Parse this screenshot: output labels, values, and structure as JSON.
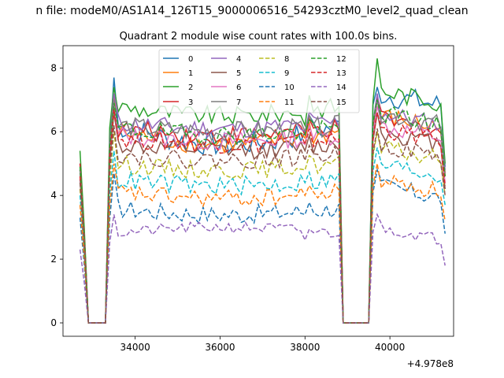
{
  "figure": {
    "suptitle": "n file: modeM0/AS1A14_126T15_9000006516_54293cztM0_level2_quad_clean",
    "offset_label": "+4.978e8"
  },
  "chart_data": {
    "type": "line",
    "title": "Quadrant 2 module wise count rates with 100.0s bins.",
    "xlabel": "",
    "ylabel": "",
    "x_offset": 497800000,
    "xlim": [
      32300,
      41500
    ],
    "ylim": [
      -0.42,
      8.7
    ],
    "x_ticks": [
      34000,
      36000,
      38000,
      40000
    ],
    "x_tick_labels": [
      "34000",
      "36000",
      "38000",
      "40000"
    ],
    "y_ticks": [
      0,
      2,
      4,
      6,
      8
    ],
    "y_tick_labels": [
      "0",
      "2",
      "4",
      "6",
      "8"
    ],
    "grid": false,
    "legend_position": "top-center",
    "legend_columns": 4,
    "x_segments": [
      {
        "start": 32700,
        "end": 33500,
        "step": 100
      },
      {
        "start": 33500,
        "end": 38900,
        "step": 100
      },
      {
        "start": 38900,
        "end": 41300,
        "step": 100
      }
    ],
    "series": [
      {
        "name": "0",
        "color": "#1f77b4",
        "dash": "solid",
        "level": 6.2,
        "jitter": 0.38,
        "drift": -0.3,
        "start": 5.0,
        "peak": 7.7,
        "gap_low": 6.0,
        "post": 7.2,
        "post_peak": 7.4,
        "end": 4.9
      },
      {
        "name": "1",
        "color": "#ff7f0e",
        "dash": "solid",
        "level": 6.0,
        "jitter": 0.32,
        "drift": -0.2,
        "start": 4.8,
        "peak": 7.2,
        "gap_low": 5.8,
        "post": 6.5,
        "post_peak": 7.0,
        "end": 4.6
      },
      {
        "name": "2",
        "color": "#2ca02c",
        "dash": "solid",
        "level": 6.8,
        "jitter": 0.3,
        "drift": -0.15,
        "start": 5.4,
        "peak": 7.4,
        "gap_low": 6.2,
        "post": 7.3,
        "post_peak": 8.3,
        "end": 5.0
      },
      {
        "name": "3",
        "color": "#d62728",
        "dash": "solid",
        "level": 6.1,
        "jitter": 0.3,
        "drift": -0.1,
        "start": 5.0,
        "peak": 7.0,
        "gap_low": 5.9,
        "post": 6.4,
        "post_peak": 7.1,
        "end": 4.7
      },
      {
        "name": "4",
        "color": "#9467bd",
        "dash": "solid",
        "level": 6.3,
        "jitter": 0.3,
        "drift": -0.1,
        "start": 4.8,
        "peak": 7.2,
        "gap_low": 6.0,
        "post": 6.6,
        "post_peak": 7.2,
        "end": 4.8
      },
      {
        "name": "5",
        "color": "#8c564b",
        "dash": "solid",
        "level": 5.6,
        "jitter": 0.28,
        "drift": -0.1,
        "start": 4.5,
        "peak": 6.6,
        "gap_low": 5.4,
        "post": 6.0,
        "post_peak": 6.6,
        "end": 4.2
      },
      {
        "name": "6",
        "color": "#e377c2",
        "dash": "solid",
        "level": 5.9,
        "jitter": 0.3,
        "drift": -0.1,
        "start": 4.7,
        "peak": 6.8,
        "gap_low": 5.6,
        "post": 6.2,
        "post_peak": 6.8,
        "end": 4.4
      },
      {
        "name": "7",
        "color": "#7f7f7f",
        "dash": "solid",
        "level": 6.2,
        "jitter": 0.32,
        "drift": -0.1,
        "start": 4.8,
        "peak": 7.0,
        "gap_low": 6.0,
        "post": 6.6,
        "post_peak": 7.0,
        "end": 4.6
      },
      {
        "name": "8",
        "color": "#bcbd22",
        "dash": "dashed",
        "level": 5.0,
        "jitter": 0.28,
        "drift": -0.1,
        "start": 4.2,
        "peak": 6.0,
        "gap_low": 4.8,
        "post": 5.5,
        "post_peak": 6.0,
        "end": 4.0
      },
      {
        "name": "9",
        "color": "#17becf",
        "dash": "dashed",
        "level": 4.5,
        "jitter": 0.3,
        "drift": -0.1,
        "start": 4.0,
        "peak": 5.4,
        "gap_low": 4.4,
        "post": 5.0,
        "post_peak": 5.5,
        "end": 3.7
      },
      {
        "name": "10",
        "color": "#1f77b4",
        "dash": "dashed",
        "level": 3.6,
        "jitter": 0.3,
        "drift": -0.1,
        "start": 3.3,
        "peak": 4.7,
        "gap_low": 3.4,
        "post": 4.3,
        "post_peak": 4.8,
        "end": 2.8
      },
      {
        "name": "11",
        "color": "#ff7f0e",
        "dash": "dashed",
        "level": 4.1,
        "jitter": 0.28,
        "drift": -0.1,
        "start": 3.7,
        "peak": 5.0,
        "gap_low": 4.0,
        "post": 4.5,
        "post_peak": 5.0,
        "end": 3.2
      },
      {
        "name": "12",
        "color": "#2ca02c",
        "dash": "dashed",
        "level": 6.1,
        "jitter": 0.3,
        "drift": -0.1,
        "start": 4.9,
        "peak": 6.9,
        "gap_low": 5.9,
        "post": 6.6,
        "post_peak": 7.0,
        "end": 4.6
      },
      {
        "name": "13",
        "color": "#d62728",
        "dash": "dashed",
        "level": 5.8,
        "jitter": 0.28,
        "drift": -0.1,
        "start": 4.6,
        "peak": 6.7,
        "gap_low": 5.6,
        "post": 6.1,
        "post_peak": 6.6,
        "end": 4.3
      },
      {
        "name": "14",
        "color": "#9467bd",
        "dash": "dashed",
        "level": 2.8,
        "jitter": 0.18,
        "drift": 0.1,
        "start": 2.3,
        "peak": 3.4,
        "gap_low": 2.6,
        "post": 3.0,
        "post_peak": 3.4,
        "end": 1.8
      },
      {
        "name": "15",
        "color": "#8c564b",
        "dash": "dashed",
        "level": 5.3,
        "jitter": 0.28,
        "drift": -0.1,
        "start": 4.4,
        "peak": 6.2,
        "gap_low": 5.1,
        "post": 5.6,
        "post_peak": 6.1,
        "end": 4.0
      }
    ]
  }
}
